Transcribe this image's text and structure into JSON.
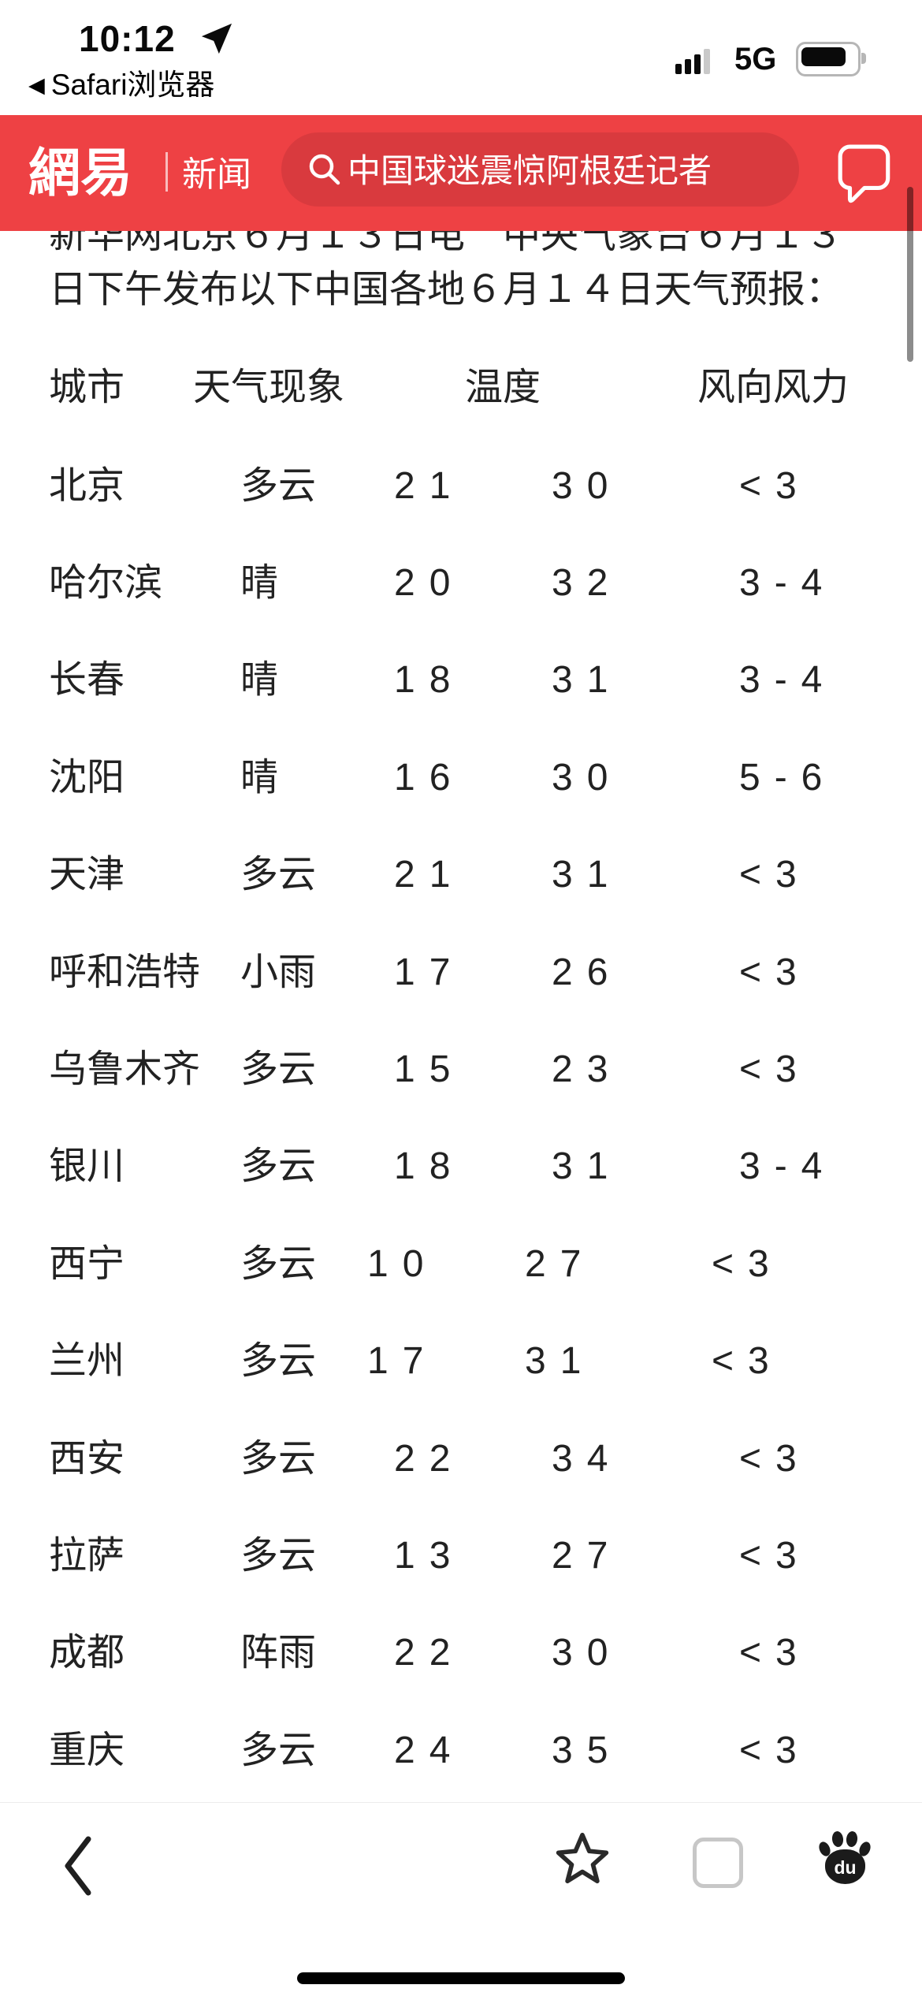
{
  "status_bar": {
    "time": "10:12",
    "back_icon_glyph": "◀",
    "back_app_label": "Safari浏览器",
    "network": "5G"
  },
  "header": {
    "logo": "網易",
    "section": "新闻",
    "search_query": "中国球迷震惊阿根廷记者",
    "message_badge": "0"
  },
  "article": {
    "intro_line1": "新华网北京６月１３日电　中央气象台６月１３",
    "intro_line2": "日下午发布以下中国各地６月１４日天气预报："
  },
  "weather_table": {
    "columns": [
      "城市",
      "天气现象",
      "温度",
      "风向风力"
    ],
    "rows": [
      {
        "city": "北京",
        "weather": "多云",
        "low": "21",
        "high": "30",
        "wind": "<3"
      },
      {
        "city": "哈尔滨",
        "weather": "晴",
        "low": "20",
        "high": "32",
        "wind": "3-4"
      },
      {
        "city": "长春",
        "weather": "晴",
        "low": "18",
        "high": "31",
        "wind": "3-4"
      },
      {
        "city": "沈阳",
        "weather": "晴",
        "low": "16",
        "high": "30",
        "wind": "5-6"
      },
      {
        "city": "天津",
        "weather": "多云",
        "low": "21",
        "high": "31",
        "wind": "<3"
      },
      {
        "city": "呼和浩特",
        "weather": "小雨",
        "low": "17",
        "high": "26",
        "wind": "<3"
      },
      {
        "city": "乌鲁木齐",
        "weather": "多云",
        "low": "15",
        "high": "23",
        "wind": "<3"
      },
      {
        "city": "银川",
        "weather": "多云",
        "low": "18",
        "high": "31",
        "wind": "3-4"
      },
      {
        "city": "西宁",
        "weather": "多云",
        "low": "10",
        "high": "27",
        "wind": "<3"
      },
      {
        "city": "兰州",
        "weather": "多云",
        "low": "17",
        "high": "31",
        "wind": "<3"
      },
      {
        "city": "西安",
        "weather": "多云",
        "low": "22",
        "high": "34",
        "wind": "<3"
      },
      {
        "city": "拉萨",
        "weather": "多云",
        "low": "13",
        "high": "27",
        "wind": "<3"
      },
      {
        "city": "成都",
        "weather": "阵雨",
        "low": "22",
        "high": "30",
        "wind": "<3"
      },
      {
        "city": "重庆",
        "weather": "多云",
        "low": "24",
        "high": "35",
        "wind": "<3"
      }
    ]
  },
  "footer": {
    "baidu_logo_text": "du"
  },
  "colors": {
    "brand_red": "#ee4144",
    "search_pill_red": "#d93a3e",
    "text": "#222222"
  }
}
